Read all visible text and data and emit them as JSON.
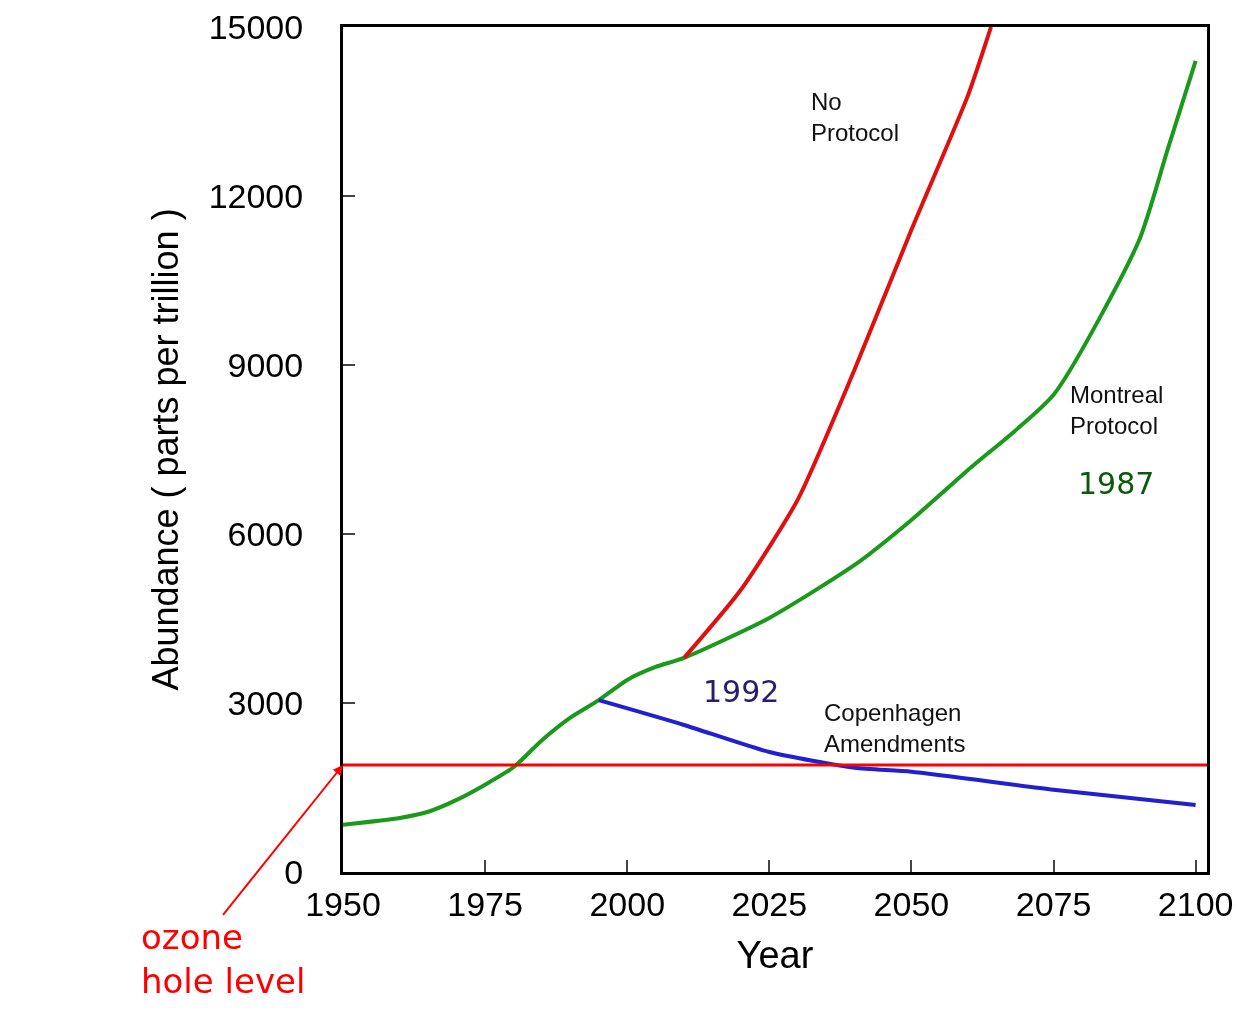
{
  "chart_data": {
    "type": "line",
    "xlabel": "Year",
    "ylabel": "Abundance ( parts per trillion )",
    "xlim": [
      1950,
      2102
    ],
    "xticks": [
      1950,
      1975,
      2000,
      2025,
      2050,
      2075,
      2100
    ],
    "ylim": [
      0,
      15000
    ],
    "yticks": [
      0,
      3000,
      6000,
      9000,
      12000,
      15000
    ],
    "grid": false,
    "marker": "none",
    "line_style": "solid",
    "series": [
      {
        "color": "#1a9a1a",
        "x": [
          1950,
          1960,
          1965,
          1970,
          1975,
          1980,
          1985,
          1990,
          1995,
          2000,
          2005,
          2010,
          2025,
          2040,
          2050,
          2060,
          2075,
          2090,
          2095,
          2100
        ],
        "name": "Montreal Protocol",
        "values": [
          840,
          960,
          1070,
          1280,
          1550,
          1860,
          2340,
          2740,
          3050,
          3410,
          3640,
          3800,
          4510,
          5450,
          6250,
          7140,
          8470,
          11200,
          12800,
          14400
        ]
      },
      {
        "color": "#e01010",
        "name": "No Protocol",
        "x": [
          2010,
          2020,
          2030,
          2040,
          2050,
          2060,
          2064
        ],
        "values": [
          3800,
          5010,
          6610,
          8920,
          11400,
          13800,
          15000
        ]
      },
      {
        "color": "#2020d0",
        "name": "Copenhagen Amendments",
        "x": [
          1995,
          2010,
          2025,
          2040,
          2050,
          2075,
          2100
        ],
        "values": [
          3050,
          2610,
          2130,
          1850,
          1780,
          1460,
          1190
        ]
      }
    ],
    "ref_lines": [
      {
        "axis": "y",
        "value": 1900,
        "label": "ozone hole level",
        "color": "#ff0000"
      }
    ],
    "annotations": [
      "1987",
      "1992"
    ]
  }
}
